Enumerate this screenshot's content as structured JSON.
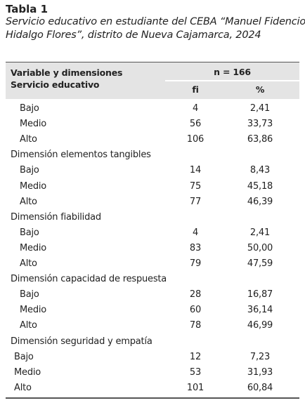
{
  "header": {
    "title": "Tabla 1",
    "caption_lines": [
      "Servicio educativo en estudiante del CEBA “Manuel Fidencio",
      "Hidalgo Flores”, distrito de Nueva Cajamarca, 2024"
    ]
  },
  "table": {
    "head": {
      "variable": "Variable y dimensiones",
      "variable_sub": "Servicio educativo",
      "n": "n = 166",
      "fi": "fi",
      "pct": "%"
    },
    "groups": [
      {
        "rows": [
          [
            "Bajo",
            "4",
            "2,41"
          ],
          [
            "Medio",
            "56",
            "33,73"
          ],
          [
            "Alto",
            "106",
            "63,86"
          ]
        ]
      },
      {
        "label": "Dimensión elementos tangibles",
        "rows": [
          [
            "Bajo",
            "14",
            "8,43"
          ],
          [
            "Medio",
            "75",
            "45,18"
          ],
          [
            "Alto",
            "77",
            "46,39"
          ]
        ]
      },
      {
        "label": "Dimensión fiabilidad",
        "rows": [
          [
            "Bajo",
            "4",
            "2,41"
          ],
          [
            "Medio",
            "83",
            "50,00"
          ],
          [
            "Alto",
            "79",
            "47,59"
          ]
        ]
      },
      {
        "label": "Dimensión capacidad de respuesta",
        "rows": [
          [
            "Bajo",
            "28",
            "16,87"
          ],
          [
            "Medio",
            "60",
            "36,14"
          ],
          [
            "Alto",
            "78",
            "46,99"
          ]
        ]
      },
      {
        "label": "Dimensión seguridad y empatía",
        "rows": [
          [
            "Bajo",
            "12",
            "7,23"
          ],
          [
            "Medio",
            "53",
            "31,93"
          ],
          [
            "Alto",
            "101",
            "60,84"
          ]
        ]
      }
    ]
  }
}
